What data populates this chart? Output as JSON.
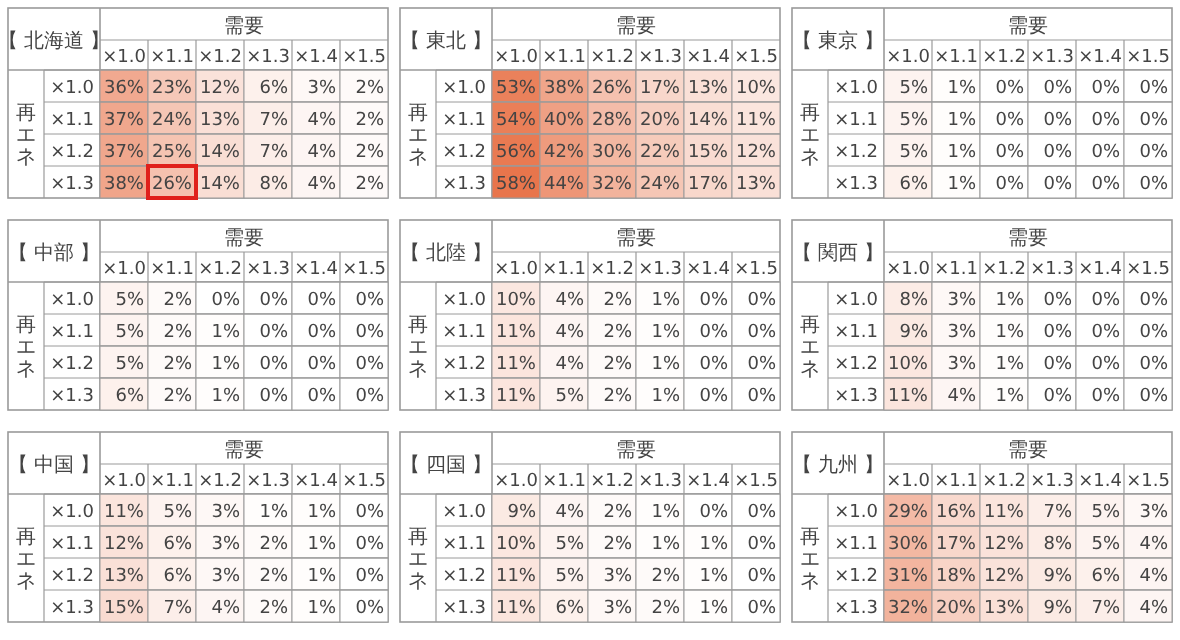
{
  "chart_data": [
    {
      "type": "heatmap",
      "title": "【 北海道 】",
      "xlabel": "需要",
      "ylabel": "再エネ",
      "categories": [
        "×1.0",
        "×1.1",
        "×1.2",
        "×1.3",
        "×1.4",
        "×1.5"
      ],
      "y_categories": [
        "×1.0",
        "×1.1",
        "×1.2",
        "×1.3"
      ],
      "cells": [
        [
          36,
          23,
          12,
          6,
          3,
          2
        ],
        [
          37,
          24,
          13,
          7,
          4,
          2
        ],
        [
          37,
          25,
          14,
          7,
          4,
          2
        ],
        [
          38,
          26,
          14,
          8,
          4,
          2
        ]
      ],
      "cell_labels": [
        [
          "36%",
          "23%",
          "12%",
          "6%",
          "3%",
          "2%"
        ],
        [
          "37%",
          "24%",
          "13%",
          "7%",
          "4%",
          "2%"
        ],
        [
          "37%",
          "25%",
          "14%",
          "7%",
          "4%",
          "2%"
        ],
        [
          "38%",
          "26%",
          "14%",
          "8%",
          "4%",
          "2%"
        ]
      ]
    },
    {
      "type": "heatmap",
      "title": "【 東北 】",
      "xlabel": "需要",
      "ylabel": "再エネ",
      "categories": [
        "×1.0",
        "×1.1",
        "×1.2",
        "×1.3",
        "×1.4",
        "×1.5"
      ],
      "y_categories": [
        "×1.0",
        "×1.1",
        "×1.2",
        "×1.3"
      ],
      "cells": [
        [
          53,
          38,
          26,
          17,
          13,
          10
        ],
        [
          54,
          40,
          28,
          20,
          14,
          11
        ],
        [
          56,
          42,
          30,
          22,
          15,
          12
        ],
        [
          58,
          44,
          32,
          24,
          17,
          13
        ]
      ],
      "cell_labels": [
        [
          "53%",
          "38%",
          "26%",
          "17%",
          "13%",
          "10%"
        ],
        [
          "54%",
          "40%",
          "28%",
          "20%",
          "14%",
          "11%"
        ],
        [
          "56%",
          "42%",
          "30%",
          "22%",
          "15%",
          "12%"
        ],
        [
          "58%",
          "44%",
          "32%",
          "24%",
          "17%",
          "13%"
        ]
      ]
    },
    {
      "type": "heatmap",
      "title": "【 東京 】",
      "xlabel": "需要",
      "ylabel": "再エネ",
      "categories": [
        "×1.0",
        "×1.1",
        "×1.2",
        "×1.3",
        "×1.4",
        "×1.5"
      ],
      "y_categories": [
        "×1.0",
        "×1.1",
        "×1.2",
        "×1.3"
      ],
      "cells": [
        [
          5,
          1,
          0,
          0,
          0,
          0
        ],
        [
          5,
          1,
          0,
          0,
          0,
          0
        ],
        [
          5,
          1,
          0,
          0,
          0,
          0
        ],
        [
          6,
          1,
          0,
          0,
          0,
          0
        ]
      ],
      "cell_labels": [
        [
          "5%",
          "1%",
          "0%",
          "0%",
          "0%",
          "0%"
        ],
        [
          "5%",
          "1%",
          "0%",
          "0%",
          "0%",
          "0%"
        ],
        [
          "5%",
          "1%",
          "0%",
          "0%",
          "0%",
          "0%"
        ],
        [
          "6%",
          "1%",
          "0%",
          "0%",
          "0%",
          "0%"
        ]
      ]
    },
    {
      "type": "heatmap",
      "title": "【 中部 】",
      "xlabel": "需要",
      "ylabel": "再エネ",
      "categories": [
        "×1.0",
        "×1.1",
        "×1.2",
        "×1.3",
        "×1.4",
        "×1.5"
      ],
      "y_categories": [
        "×1.0",
        "×1.1",
        "×1.2",
        "×1.3"
      ],
      "cells": [
        [
          5,
          2,
          0,
          0,
          0,
          0
        ],
        [
          5,
          2,
          1,
          0,
          0,
          0
        ],
        [
          5,
          2,
          1,
          0,
          0,
          0
        ],
        [
          6,
          2,
          1,
          0,
          0,
          0
        ]
      ],
      "cell_labels": [
        [
          "5%",
          "2%",
          "0%",
          "0%",
          "0%",
          "0%"
        ],
        [
          "5%",
          "2%",
          "1%",
          "0%",
          "0%",
          "0%"
        ],
        [
          "5%",
          "2%",
          "1%",
          "0%",
          "0%",
          "0%"
        ],
        [
          "6%",
          "2%",
          "1%",
          "0%",
          "0%",
          "0%"
        ]
      ]
    },
    {
      "type": "heatmap",
      "title": "【 北陸 】",
      "xlabel": "需要",
      "ylabel": "再エネ",
      "categories": [
        "×1.0",
        "×1.1",
        "×1.2",
        "×1.3",
        "×1.4",
        "×1.5"
      ],
      "y_categories": [
        "×1.0",
        "×1.1",
        "×1.2",
        "×1.3"
      ],
      "cells": [
        [
          10,
          4,
          2,
          1,
          0,
          0
        ],
        [
          11,
          4,
          2,
          1,
          0,
          0
        ],
        [
          11,
          4,
          2,
          1,
          0,
          0
        ],
        [
          11,
          5,
          2,
          1,
          0,
          0
        ]
      ],
      "cell_labels": [
        [
          "10%",
          "4%",
          "2%",
          "1%",
          "0%",
          "0%"
        ],
        [
          "11%",
          "4%",
          "2%",
          "1%",
          "0%",
          "0%"
        ],
        [
          "11%",
          "4%",
          "2%",
          "1%",
          "0%",
          "0%"
        ],
        [
          "11%",
          "5%",
          "2%",
          "1%",
          "0%",
          "0%"
        ]
      ]
    },
    {
      "type": "heatmap",
      "title": "【 関西 】",
      "xlabel": "需要",
      "ylabel": "再エネ",
      "categories": [
        "×1.0",
        "×1.1",
        "×1.2",
        "×1.3",
        "×1.4",
        "×1.5"
      ],
      "y_categories": [
        "×1.0",
        "×1.1",
        "×1.2",
        "×1.3"
      ],
      "cells": [
        [
          8,
          3,
          1,
          0,
          0,
          0
        ],
        [
          9,
          3,
          1,
          0,
          0,
          0
        ],
        [
          10,
          3,
          1,
          0,
          0,
          0
        ],
        [
          11,
          4,
          1,
          0,
          0,
          0
        ]
      ],
      "cell_labels": [
        [
          "8%",
          "3%",
          "1%",
          "0%",
          "0%",
          "0%"
        ],
        [
          "9%",
          "3%",
          "1%",
          "0%",
          "0%",
          "0%"
        ],
        [
          "10%",
          "3%",
          "1%",
          "0%",
          "0%",
          "0%"
        ],
        [
          "11%",
          "4%",
          "1%",
          "0%",
          "0%",
          "0%"
        ]
      ]
    },
    {
      "type": "heatmap",
      "title": "【 中国 】",
      "xlabel": "需要",
      "ylabel": "再エネ",
      "categories": [
        "×1.0",
        "×1.1",
        "×1.2",
        "×1.3",
        "×1.4",
        "×1.5"
      ],
      "y_categories": [
        "×1.0",
        "×1.1",
        "×1.2",
        "×1.3"
      ],
      "cells": [
        [
          11,
          5,
          3,
          1,
          1,
          0
        ],
        [
          12,
          6,
          3,
          2,
          1,
          0
        ],
        [
          13,
          6,
          3,
          2,
          1,
          0
        ],
        [
          15,
          7,
          4,
          2,
          1,
          0
        ]
      ],
      "cell_labels": [
        [
          "11%",
          "5%",
          "3%",
          "1%",
          "1%",
          "0%"
        ],
        [
          "12%",
          "6%",
          "3%",
          "2%",
          "1%",
          "0%"
        ],
        [
          "13%",
          "6%",
          "3%",
          "2%",
          "1%",
          "0%"
        ],
        [
          "15%",
          "7%",
          "4%",
          "2%",
          "1%",
          "0%"
        ]
      ]
    },
    {
      "type": "heatmap",
      "title": "【 四国 】",
      "xlabel": "需要",
      "ylabel": "再エネ",
      "categories": [
        "×1.0",
        "×1.1",
        "×1.2",
        "×1.3",
        "×1.4",
        "×1.5"
      ],
      "y_categories": [
        "×1.0",
        "×1.1",
        "×1.2",
        "×1.3"
      ],
      "cells": [
        [
          9,
          4,
          2,
          1,
          0,
          0
        ],
        [
          10,
          5,
          2,
          1,
          1,
          0
        ],
        [
          11,
          5,
          3,
          2,
          1,
          0
        ],
        [
          11,
          6,
          3,
          2,
          1,
          0
        ]
      ],
      "cell_labels": [
        [
          "9%",
          "4%",
          "2%",
          "1%",
          "0%",
          "0%"
        ],
        [
          "10%",
          "5%",
          "2%",
          "1%",
          "1%",
          "0%"
        ],
        [
          "11%",
          "5%",
          "3%",
          "2%",
          "1%",
          "0%"
        ],
        [
          "11%",
          "6%",
          "3%",
          "2%",
          "1%",
          "0%"
        ]
      ]
    },
    {
      "type": "heatmap",
      "title": "【 九州 】",
      "xlabel": "需要",
      "ylabel": "再エネ",
      "categories": [
        "×1.0",
        "×1.1",
        "×1.2",
        "×1.3",
        "×1.4",
        "×1.5"
      ],
      "y_categories": [
        "×1.0",
        "×1.1",
        "×1.2",
        "×1.3"
      ],
      "cells": [
        [
          29,
          16,
          11,
          7,
          5,
          3
        ],
        [
          30,
          17,
          12,
          8,
          5,
          4
        ],
        [
          31,
          18,
          12,
          9,
          6,
          4
        ],
        [
          32,
          20,
          13,
          9,
          7,
          4
        ]
      ],
      "cell_labels": [
        [
          "29%",
          "16%",
          "11%",
          "7%",
          "5%",
          "3%"
        ],
        [
          "30%",
          "17%",
          "12%",
          "8%",
          "5%",
          "4%"
        ],
        [
          "31%",
          "18%",
          "12%",
          "9%",
          "6%",
          "4%"
        ],
        [
          "32%",
          "20%",
          "13%",
          "9%",
          "7%",
          "4%"
        ]
      ]
    }
  ]
}
